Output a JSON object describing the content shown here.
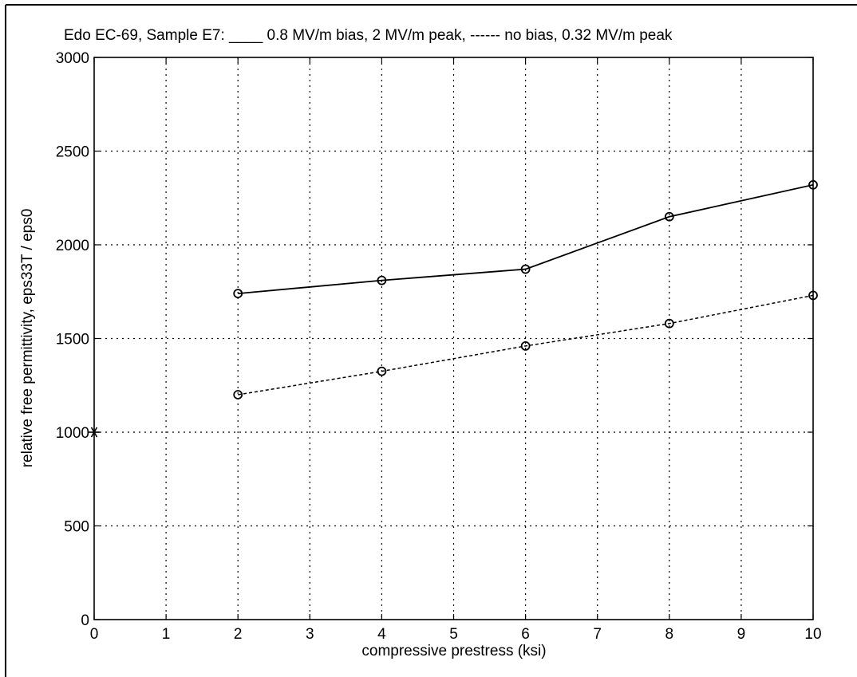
{
  "chart_data": {
    "type": "line",
    "title": "Edo EC-69, Sample E7: ____ 0.8 MV/m bias, 2 MV/m peak, ------ no bias, 0.32 MV/m peak",
    "xlabel": "compressive prestress (ksi)",
    "ylabel": "relative free permittivity, eps33T / eps0",
    "xlim": [
      0,
      10
    ],
    "ylim": [
      0,
      3000
    ],
    "x_ticks": [
      0,
      1,
      2,
      3,
      4,
      5,
      6,
      7,
      8,
      9,
      10
    ],
    "y_ticks": [
      0,
      500,
      1000,
      1500,
      2000,
      2500,
      3000
    ],
    "grid": true,
    "series": [
      {
        "line_style": "solid",
        "marker": "circle",
        "x": [
          2,
          4,
          6,
          8,
          10
        ],
        "y": [
          1740,
          1810,
          1870,
          2150,
          2320
        ]
      },
      {
        "line_style": "dashed",
        "marker": "circle",
        "x": [
          2,
          4,
          6,
          8,
          10
        ],
        "y": [
          1200,
          1325,
          1460,
          1580,
          1730
        ]
      }
    ],
    "annotations": [
      {
        "marker": "asterisk",
        "x": 0,
        "y": 1000
      }
    ]
  }
}
